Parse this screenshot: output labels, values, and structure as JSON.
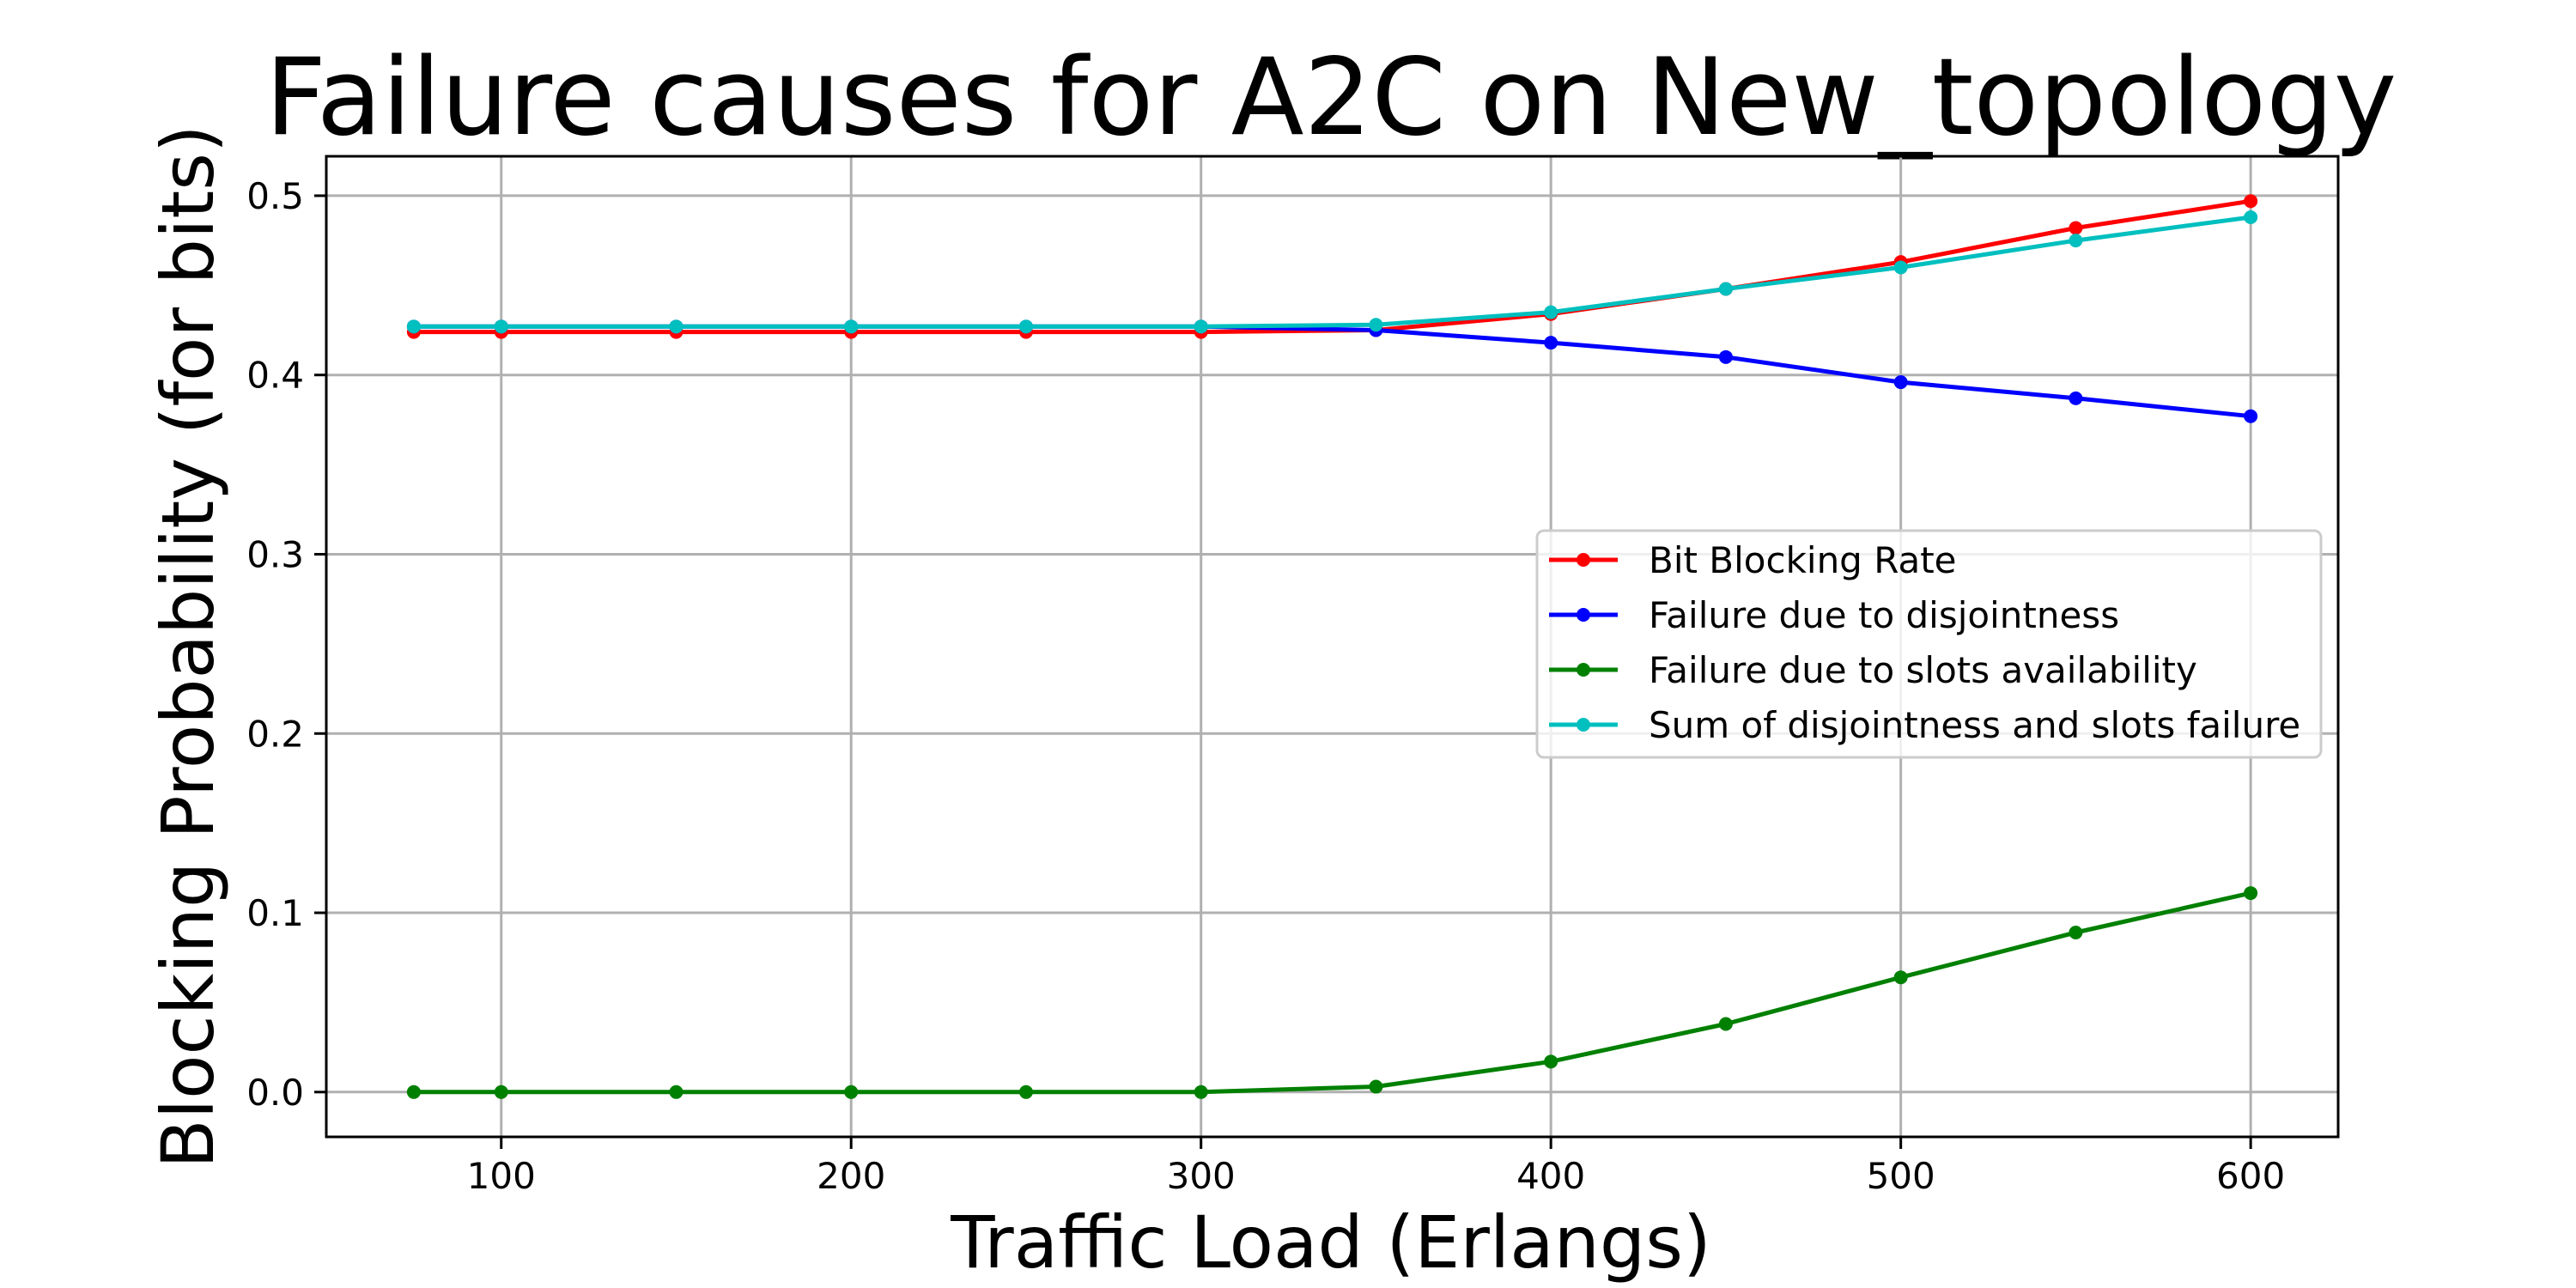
{
  "chart_data": {
    "type": "line",
    "title": "Failure causes for A2C on New_topology",
    "xlabel": "Traffic Load (Erlangs)",
    "ylabel": "Blocking Probability (for bits)",
    "x": [
      75,
      100,
      150,
      200,
      250,
      300,
      350,
      400,
      450,
      500,
      550,
      600
    ],
    "xlim": [
      50,
      625
    ],
    "ylim": [
      -0.025,
      0.522
    ],
    "xticks": [
      100,
      200,
      300,
      400,
      500,
      600
    ],
    "xtick_labels": [
      "100",
      "200",
      "300",
      "400",
      "500",
      "600"
    ],
    "yticks": [
      0.0,
      0.1,
      0.2,
      0.3,
      0.4,
      0.5
    ],
    "ytick_labels": [
      "0.0",
      "0.1",
      "0.2",
      "0.3",
      "0.4",
      "0.5"
    ],
    "grid": true,
    "legend_position": "center-right",
    "series": [
      {
        "name": "Bit Blocking Rate",
        "color": "#ff0000",
        "values": [
          0.424,
          0.424,
          0.424,
          0.424,
          0.424,
          0.424,
          0.425,
          0.434,
          0.448,
          0.463,
          0.482,
          0.497
        ]
      },
      {
        "name": "Failure due to disjointness",
        "color": "#0000ff",
        "values": [
          0.427,
          0.427,
          0.427,
          0.427,
          0.427,
          0.427,
          0.425,
          0.418,
          0.41,
          0.396,
          0.387,
          0.377
        ]
      },
      {
        "name": "Failure due to slots availability",
        "color": "#008000",
        "values": [
          0.0,
          0.0,
          0.0,
          0.0,
          0.0,
          0.0,
          0.003,
          0.017,
          0.038,
          0.064,
          0.089,
          0.111
        ]
      },
      {
        "name": "Sum of disjointness and slots failure",
        "color": "#00bfbf",
        "values": [
          0.427,
          0.427,
          0.427,
          0.427,
          0.427,
          0.427,
          0.428,
          0.435,
          0.448,
          0.46,
          0.475,
          0.488
        ]
      }
    ]
  }
}
